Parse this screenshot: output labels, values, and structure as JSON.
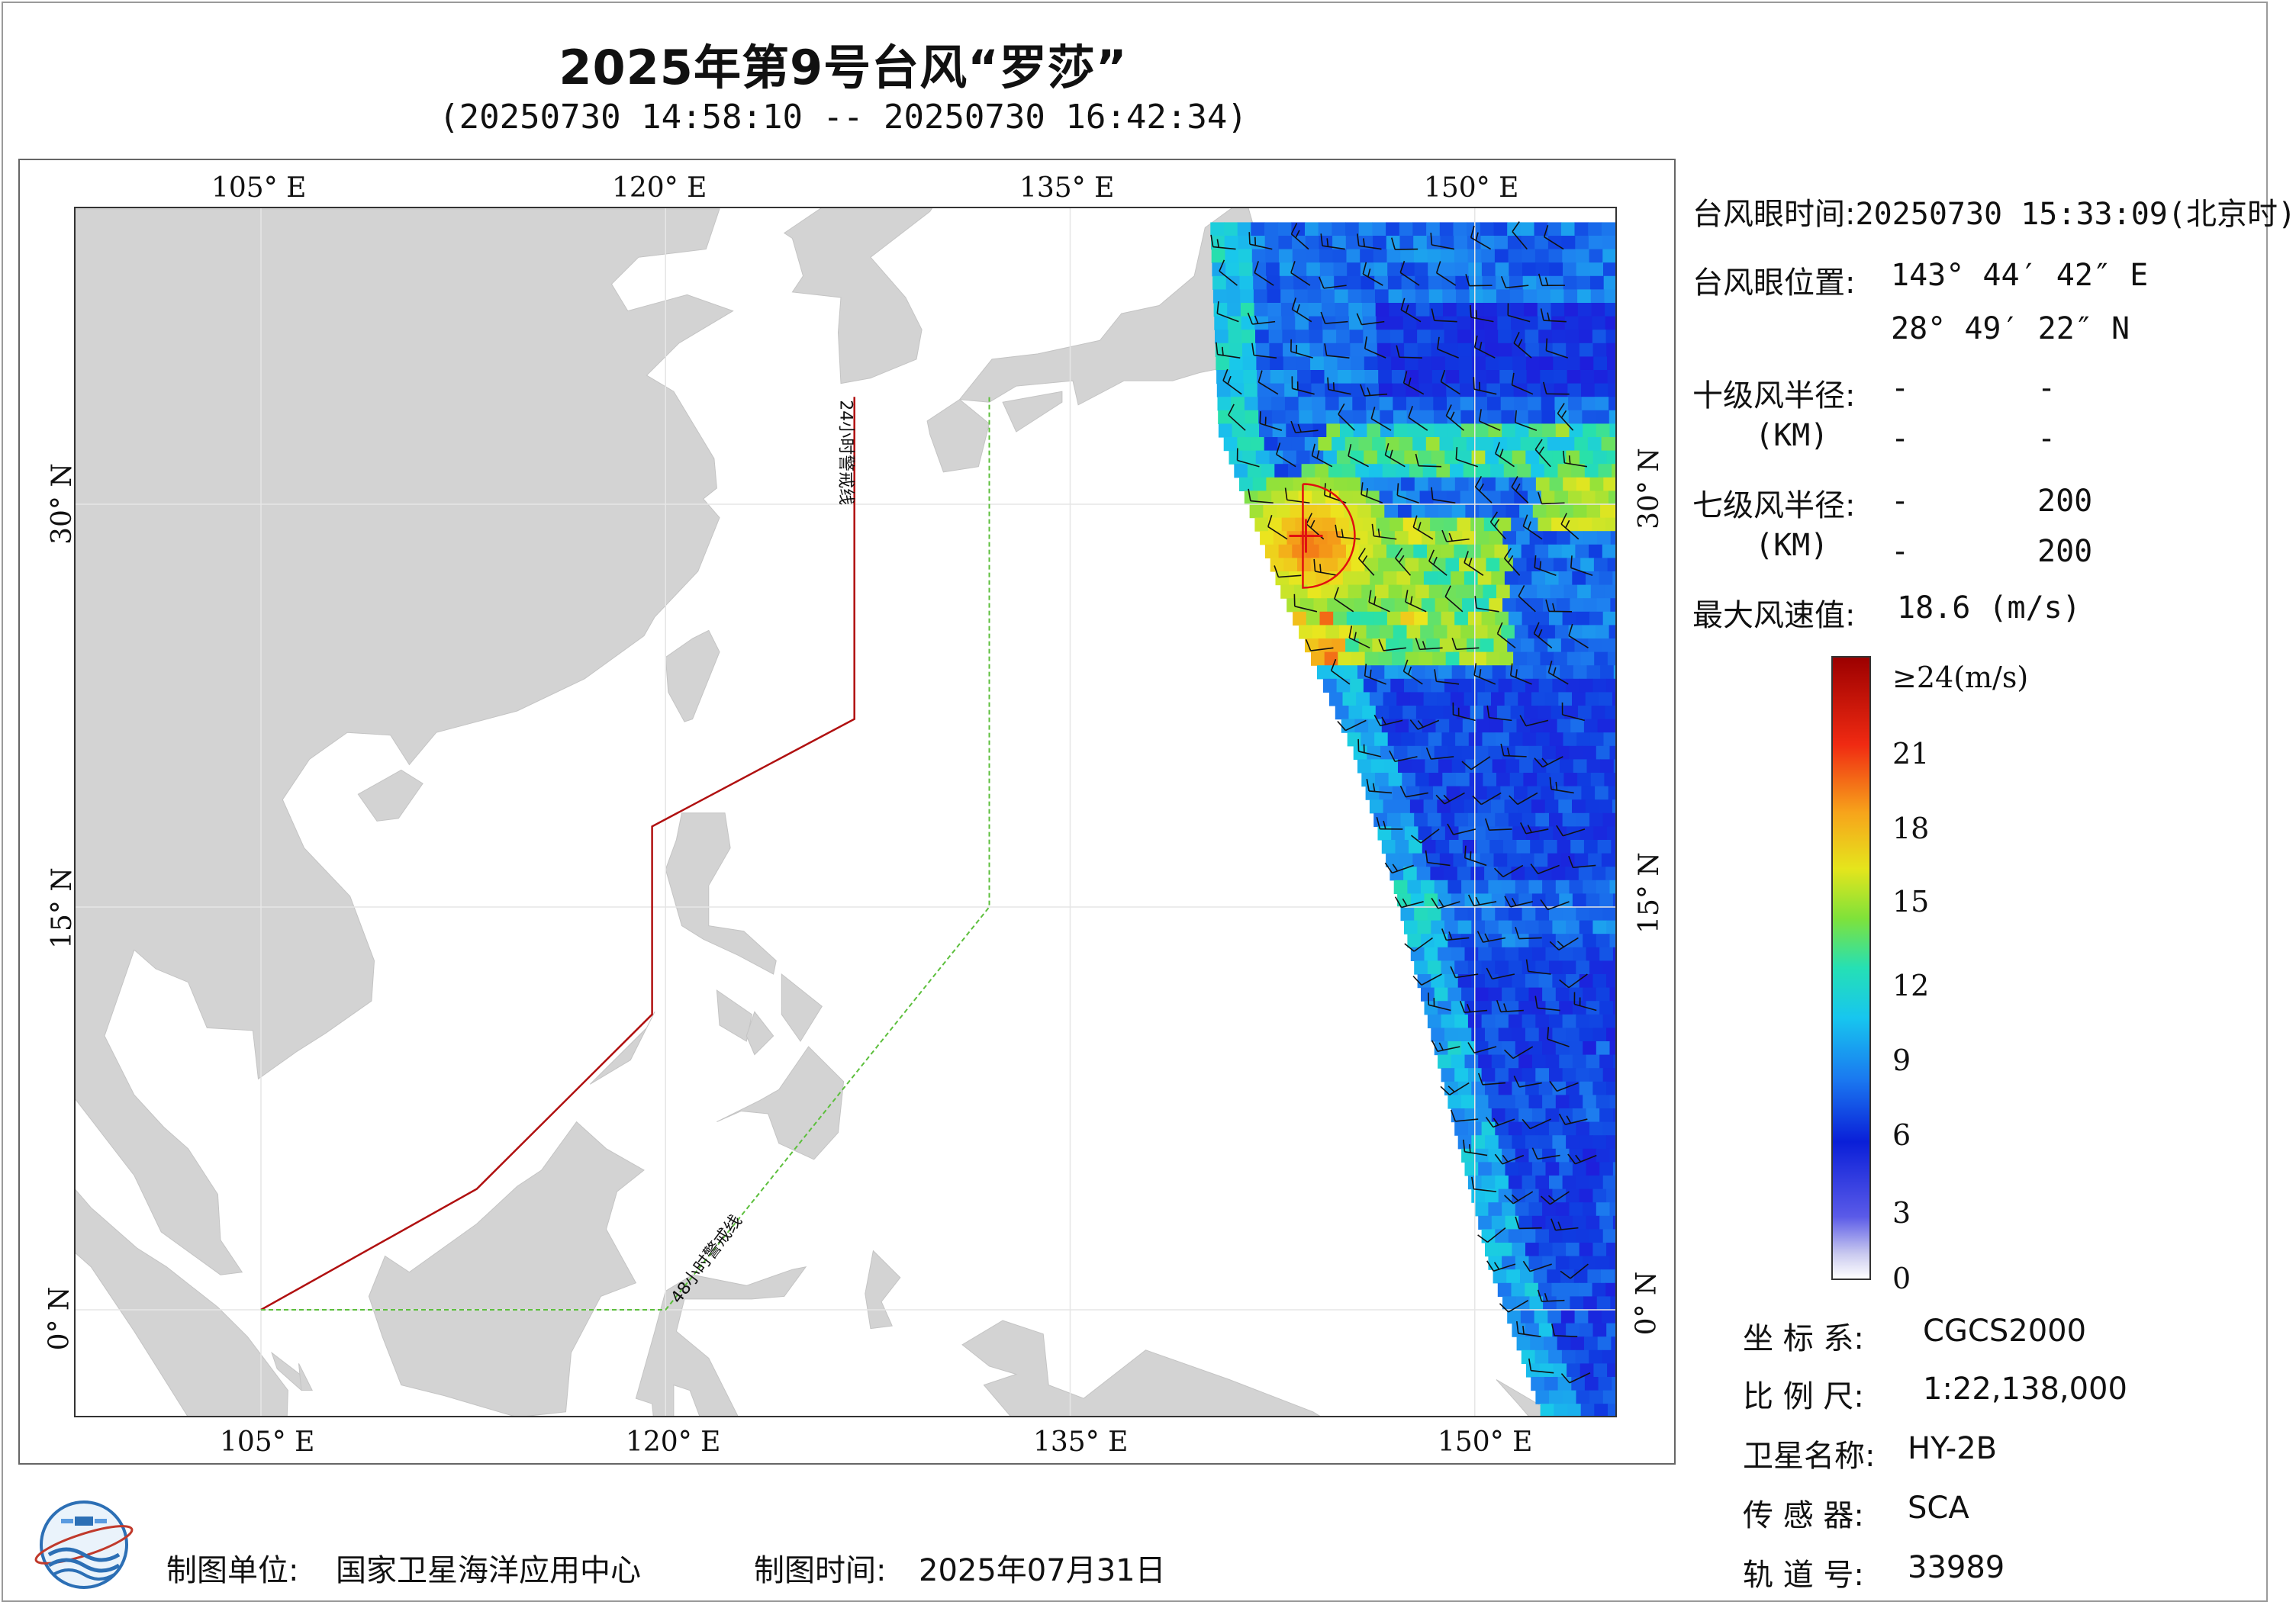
{
  "header": {
    "title": "2025年第9号台风“罗莎”",
    "subtitle": "(20250730 14:58:10 -- 20250730 16:42:34)"
  },
  "axes": {
    "lon_ticks_top": [
      "105° E",
      "120° E",
      "135° E",
      "150° E"
    ],
    "lon_ticks_bottom": [
      "105° E",
      "120° E",
      "135° E",
      "150° E"
    ],
    "lat_ticks_left": [
      "30° N",
      "15° N",
      "0° N"
    ],
    "lat_ticks_right": [
      "30° N",
      "15° N",
      "0° N"
    ],
    "lon_values": [
      105,
      120,
      135,
      150
    ],
    "lat_values": [
      30,
      15,
      0
    ]
  },
  "map": {
    "warning_line_24h_label": "24小时警戒线",
    "warning_line_48h_label": "48小时警戒线",
    "warning_line_24h_color": "#b01010",
    "warning_line_48h_color": "#5cbf3c",
    "land_color": "#d3d3d3",
    "sea_color": "#ffffff",
    "warning_line_24h": [
      [
        105,
        0
      ],
      [
        113,
        4.5
      ],
      [
        119.5,
        11
      ],
      [
        119.5,
        18
      ],
      [
        127,
        22
      ],
      [
        127,
        34
      ]
    ],
    "warning_line_48h": [
      [
        105,
        0
      ],
      [
        120,
        0
      ],
      [
        132,
        15
      ],
      [
        132,
        34
      ]
    ],
    "typhoon_eye": {
      "lon": 143.74,
      "lat": 28.82
    },
    "swath_edge_west": [
      [
        140.2,
        40.5
      ],
      [
        140.5,
        33
      ],
      [
        142.8,
        27
      ],
      [
        145.5,
        21
      ],
      [
        147,
        16
      ],
      [
        149,
        8
      ],
      [
        150.5,
        2
      ],
      [
        152.5,
        -3.7
      ]
    ],
    "swath_edge_east": [
      [
        155,
        40.5
      ],
      [
        155,
        -3.7
      ]
    ]
  },
  "info": {
    "eye_time_label": "台风眼时间:",
    "eye_time_value": "20250730 15:33:09(北京时)",
    "eye_pos_label": "台风眼位置:",
    "eye_lon": "143° 44′ 42″ E",
    "eye_lat": "28° 49′ 22″ N",
    "r10_label": "十级风半径:",
    "r10_val1": "-",
    "r10_val2": "-",
    "r10_unit": "(KM)",
    "r10_val3": "-",
    "r10_val4": "-",
    "r7_label": "七级风半径:",
    "r7_val1": "-",
    "r7_val2": "200",
    "r7_unit": "(KM)",
    "r7_val3": "-",
    "r7_val4": "200",
    "max_wind_label": "最大风速值:",
    "max_wind_value": "18.6  (m/s)"
  },
  "colorbar": {
    "labels": [
      "≥24(m/s)",
      "21",
      "18",
      "15",
      "12",
      "9",
      "6",
      "3",
      "0"
    ],
    "values": [
      24,
      21,
      18,
      15,
      12,
      9,
      6,
      3,
      0
    ]
  },
  "meta": {
    "crs_label": "坐 标 系:",
    "crs_value": "CGCS2000",
    "scale_label": "比 例 尺:",
    "scale_value": "1:22,138,000",
    "sat_label": "卫星名称:",
    "sat_value": "HY-2B",
    "sensor_label": "传 感 器:",
    "sensor_value": "SCA",
    "orbit_label": "轨 道 号:",
    "orbit_value": "33989"
  },
  "footer": {
    "producer_label": "制图单位:",
    "producer_value": "国家卫星海洋应用中心",
    "date_label": "制图时间:",
    "date_value": "2025年07月31日"
  }
}
